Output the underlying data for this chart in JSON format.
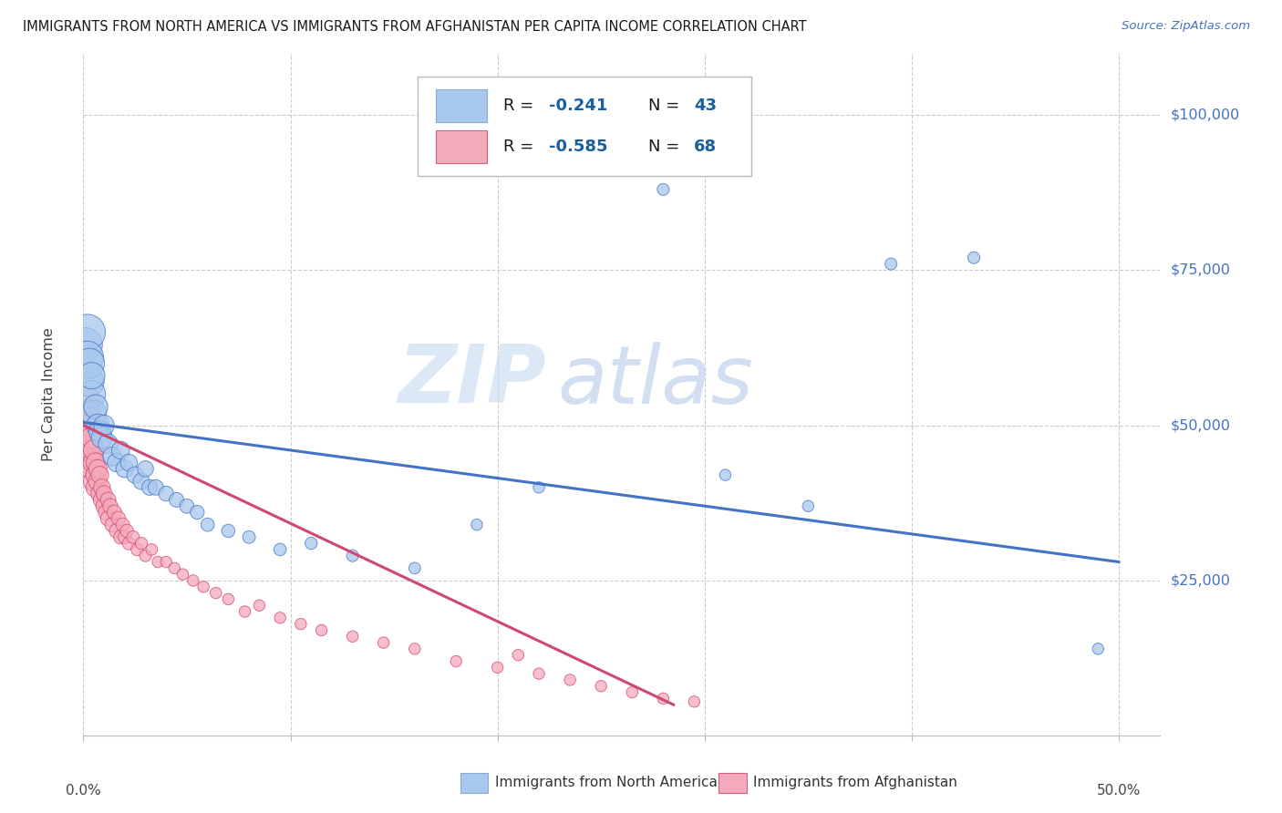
{
  "title": "IMMIGRANTS FROM NORTH AMERICA VS IMMIGRANTS FROM AFGHANISTAN PER CAPITA INCOME CORRELATION CHART",
  "source": "Source: ZipAtlas.com",
  "ylabel": "Per Capita Income",
  "xlim": [
    0.0,
    0.52
  ],
  "ylim": [
    0,
    110000
  ],
  "ytick_vals": [
    25000,
    50000,
    75000,
    100000
  ],
  "ytick_labels": [
    "$25,000",
    "$50,000",
    "$75,000",
    "$100,000"
  ],
  "legend1_R": "-0.241",
  "legend1_N": "43",
  "legend2_R": "-0.585",
  "legend2_N": "68",
  "legend_label1": "Immigrants from North America",
  "legend_label2": "Immigrants from Afghanistan",
  "blue_color": "#A8C8EE",
  "pink_color": "#F5AABB",
  "line_blue": "#4472C4",
  "line_pink": "#D04870",
  "grid_color": "#CCCCCC",
  "title_color": "#1A1A1A",
  "source_color": "#4472C4",
  "yaxis_label_color": "#444444",
  "ytick_color": "#4472C4",
  "xtick_color": "#444444",
  "legend_text_color": "#1A1A1A",
  "legend_val_color": "#1A5FA0",
  "watermark_zip_color": "#C8DCF0",
  "watermark_atlas_color": "#B5CBEA",
  "na_line_x0": 0.0,
  "na_line_x1": 0.5,
  "na_line_y0": 50500,
  "na_line_y1": 28000,
  "afg_line_x0": 0.0,
  "afg_line_x1": 0.285,
  "afg_line_y0": 50000,
  "afg_line_y1": 5000,
  "north_america_x": [
    0.001,
    0.002,
    0.002,
    0.003,
    0.003,
    0.004,
    0.004,
    0.005,
    0.006,
    0.007,
    0.008,
    0.009,
    0.01,
    0.012,
    0.014,
    0.016,
    0.018,
    0.02,
    0.022,
    0.025,
    0.028,
    0.03,
    0.032,
    0.035,
    0.04,
    0.045,
    0.05,
    0.055,
    0.06,
    0.07,
    0.08,
    0.095,
    0.11,
    0.13,
    0.16,
    0.19,
    0.22,
    0.28,
    0.31,
    0.35,
    0.39,
    0.43,
    0.49
  ],
  "north_america_y": [
    63000,
    65000,
    61000,
    57000,
    60000,
    55000,
    58000,
    52000,
    53000,
    50000,
    49000,
    48000,
    50000,
    47000,
    45000,
    44000,
    46000,
    43000,
    44000,
    42000,
    41000,
    43000,
    40000,
    40000,
    39000,
    38000,
    37000,
    36000,
    34000,
    33000,
    32000,
    30000,
    31000,
    29000,
    27000,
    34000,
    40000,
    88000,
    42000,
    37000,
    76000,
    77000,
    14000
  ],
  "north_america_size": [
    180,
    200,
    160,
    130,
    140,
    120,
    110,
    100,
    90,
    80,
    75,
    70,
    65,
    60,
    55,
    52,
    50,
    48,
    45,
    43,
    42,
    40,
    38,
    37,
    35,
    33,
    32,
    30,
    28,
    27,
    25,
    24,
    23,
    22,
    21,
    20,
    20,
    22,
    20,
    20,
    22,
    22,
    20
  ],
  "afghanistan_x": [
    0.001,
    0.001,
    0.002,
    0.002,
    0.002,
    0.003,
    0.003,
    0.003,
    0.004,
    0.004,
    0.004,
    0.005,
    0.005,
    0.005,
    0.006,
    0.006,
    0.006,
    0.007,
    0.007,
    0.008,
    0.008,
    0.009,
    0.009,
    0.01,
    0.01,
    0.011,
    0.012,
    0.012,
    0.013,
    0.014,
    0.015,
    0.016,
    0.017,
    0.018,
    0.019,
    0.02,
    0.021,
    0.022,
    0.024,
    0.026,
    0.028,
    0.03,
    0.033,
    0.036,
    0.04,
    0.044,
    0.048,
    0.053,
    0.058,
    0.064,
    0.07,
    0.078,
    0.085,
    0.095,
    0.105,
    0.115,
    0.13,
    0.145,
    0.16,
    0.18,
    0.2,
    0.21,
    0.22,
    0.235,
    0.25,
    0.265,
    0.28,
    0.295
  ],
  "afghanistan_y": [
    54000,
    50000,
    48000,
    46000,
    52000,
    47000,
    44000,
    50000,
    46000,
    43000,
    48000,
    44000,
    41000,
    46000,
    42000,
    40000,
    44000,
    41000,
    43000,
    39000,
    42000,
    38000,
    40000,
    37000,
    39000,
    36000,
    38000,
    35000,
    37000,
    34000,
    36000,
    33000,
    35000,
    32000,
    34000,
    32000,
    33000,
    31000,
    32000,
    30000,
    31000,
    29000,
    30000,
    28000,
    28000,
    27000,
    26000,
    25000,
    24000,
    23000,
    22000,
    20000,
    21000,
    19000,
    18000,
    17000,
    16000,
    15000,
    14000,
    12000,
    11000,
    13000,
    10000,
    9000,
    8000,
    7000,
    6000,
    5500
  ],
  "afghanistan_size": [
    130,
    120,
    110,
    100,
    95,
    90,
    85,
    80,
    78,
    75,
    72,
    70,
    68,
    65,
    63,
    60,
    58,
    55,
    53,
    50,
    48,
    46,
    44,
    42,
    40,
    38,
    37,
    36,
    35,
    34,
    33,
    32,
    31,
    30,
    29,
    28,
    27,
    26,
    25,
    24,
    23,
    22,
    21,
    20,
    20,
    20,
    20,
    20,
    20,
    20,
    20,
    20,
    20,
    20,
    20,
    20,
    20,
    20,
    20,
    20,
    20,
    20,
    20,
    20,
    20,
    20,
    20,
    20
  ]
}
